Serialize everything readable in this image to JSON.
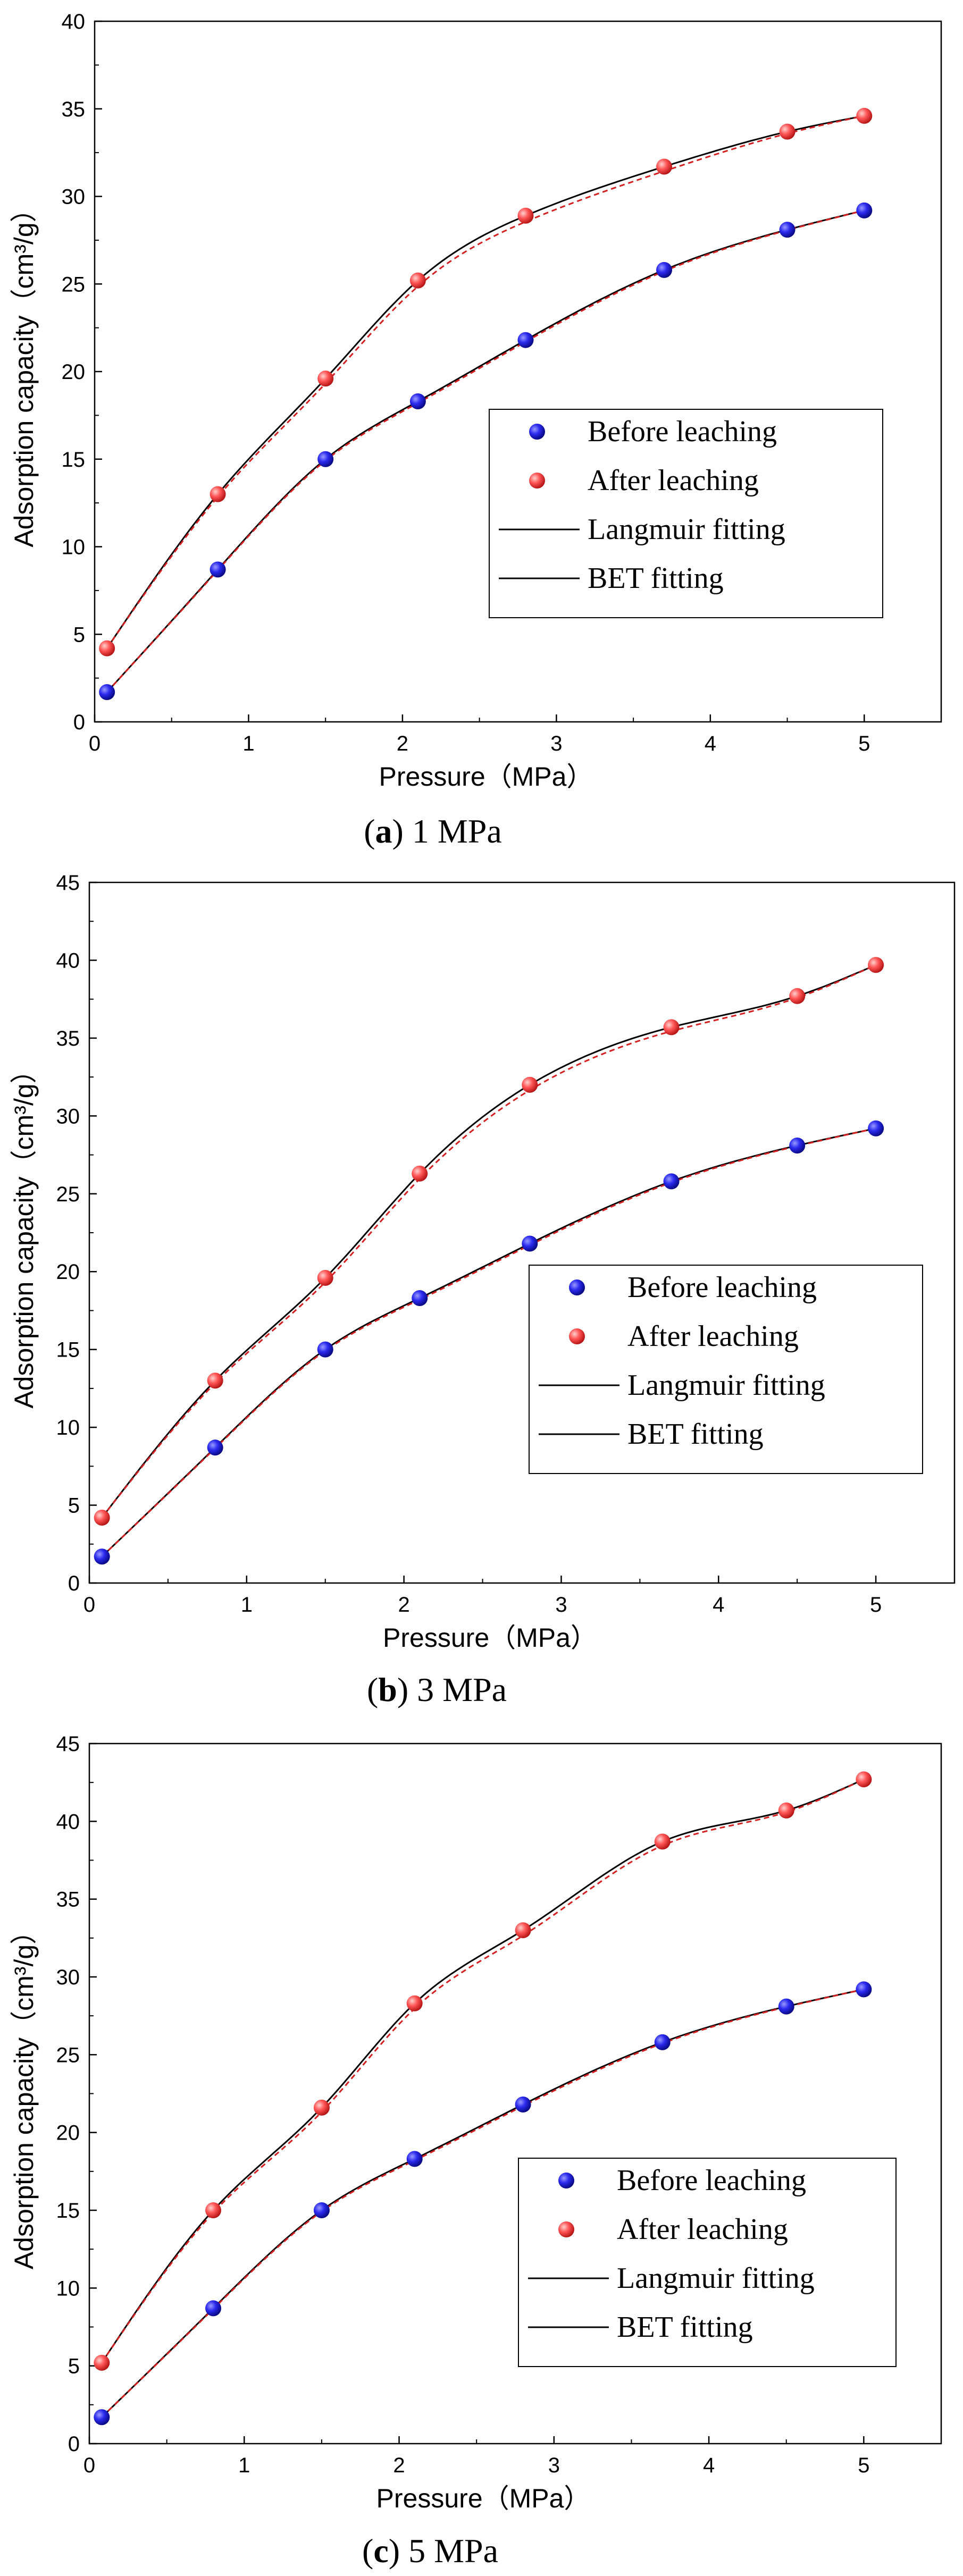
{
  "figure": {
    "ylabel": "Adsorption capacity（cm³/g）",
    "xlabel": "Pressure（MPa）",
    "legend": {
      "before": "Before leaching",
      "after": "After leaching",
      "langmuir": "Langmuir fitting",
      "bet": "BET fitting"
    },
    "colors": {
      "before": "#1a1adf",
      "after": "#ee3b3b",
      "langmuir": "#000000",
      "bet": "#d42020"
    }
  },
  "chart_data": [
    {
      "type": "scatter",
      "panel": "a",
      "caption_letter": "a",
      "caption_rest": "1 MPa",
      "xlim": [
        0,
        5.5
      ],
      "ylim": [
        0,
        40
      ],
      "xticks": [
        0,
        1,
        2,
        3,
        4,
        5
      ],
      "yticks": [
        0,
        5,
        10,
        15,
        20,
        25,
        30,
        35,
        40
      ],
      "legend_position": "center-right",
      "x": [
        0.08,
        0.8,
        1.5,
        2.1,
        2.8,
        3.7,
        4.5,
        5.0
      ],
      "series": [
        {
          "name": "Before leaching",
          "values": [
            1.7,
            8.7,
            15.0,
            18.3,
            21.8,
            25.8,
            28.1,
            29.2
          ]
        },
        {
          "name": "After leaching",
          "values": [
            4.2,
            13.0,
            19.6,
            25.2,
            28.9,
            31.7,
            33.7,
            34.6
          ]
        }
      ]
    },
    {
      "type": "scatter",
      "panel": "b",
      "caption_letter": "b",
      "caption_rest": "3 MPa",
      "xlim": [
        0,
        5.5
      ],
      "ylim": [
        0,
        45
      ],
      "xticks": [
        0,
        1,
        2,
        3,
        4,
        5
      ],
      "yticks": [
        0,
        5,
        10,
        15,
        20,
        25,
        30,
        35,
        40,
        45
      ],
      "legend_position": "lower-right",
      "x": [
        0.08,
        0.8,
        1.5,
        2.1,
        2.8,
        3.7,
        4.5,
        5.0
      ],
      "series": [
        {
          "name": "Before leaching",
          "values": [
            1.7,
            8.7,
            15.0,
            18.3,
            21.8,
            25.8,
            28.1,
            29.2
          ]
        },
        {
          "name": "After leaching",
          "values": [
            4.2,
            13.0,
            19.6,
            26.3,
            32.0,
            35.7,
            37.7,
            39.7
          ]
        }
      ]
    },
    {
      "type": "scatter",
      "panel": "c",
      "caption_letter": "c",
      "caption_rest": "5 MPa",
      "xlim": [
        0,
        5.5
      ],
      "ylim": [
        0,
        45
      ],
      "xticks": [
        0,
        1,
        2,
        3,
        4,
        5
      ],
      "yticks": [
        0,
        5,
        10,
        15,
        20,
        25,
        30,
        35,
        40,
        45
      ],
      "legend_position": "lower-right",
      "x": [
        0.08,
        0.8,
        1.5,
        2.1,
        2.8,
        3.7,
        4.5,
        5.0
      ],
      "series": [
        {
          "name": "Before leaching",
          "values": [
            1.7,
            8.7,
            15.0,
            18.3,
            21.8,
            25.8,
            28.1,
            29.2
          ]
        },
        {
          "name": "After leaching",
          "values": [
            5.2,
            15.0,
            21.6,
            28.3,
            33.0,
            38.7,
            40.7,
            42.7
          ]
        }
      ]
    }
  ]
}
